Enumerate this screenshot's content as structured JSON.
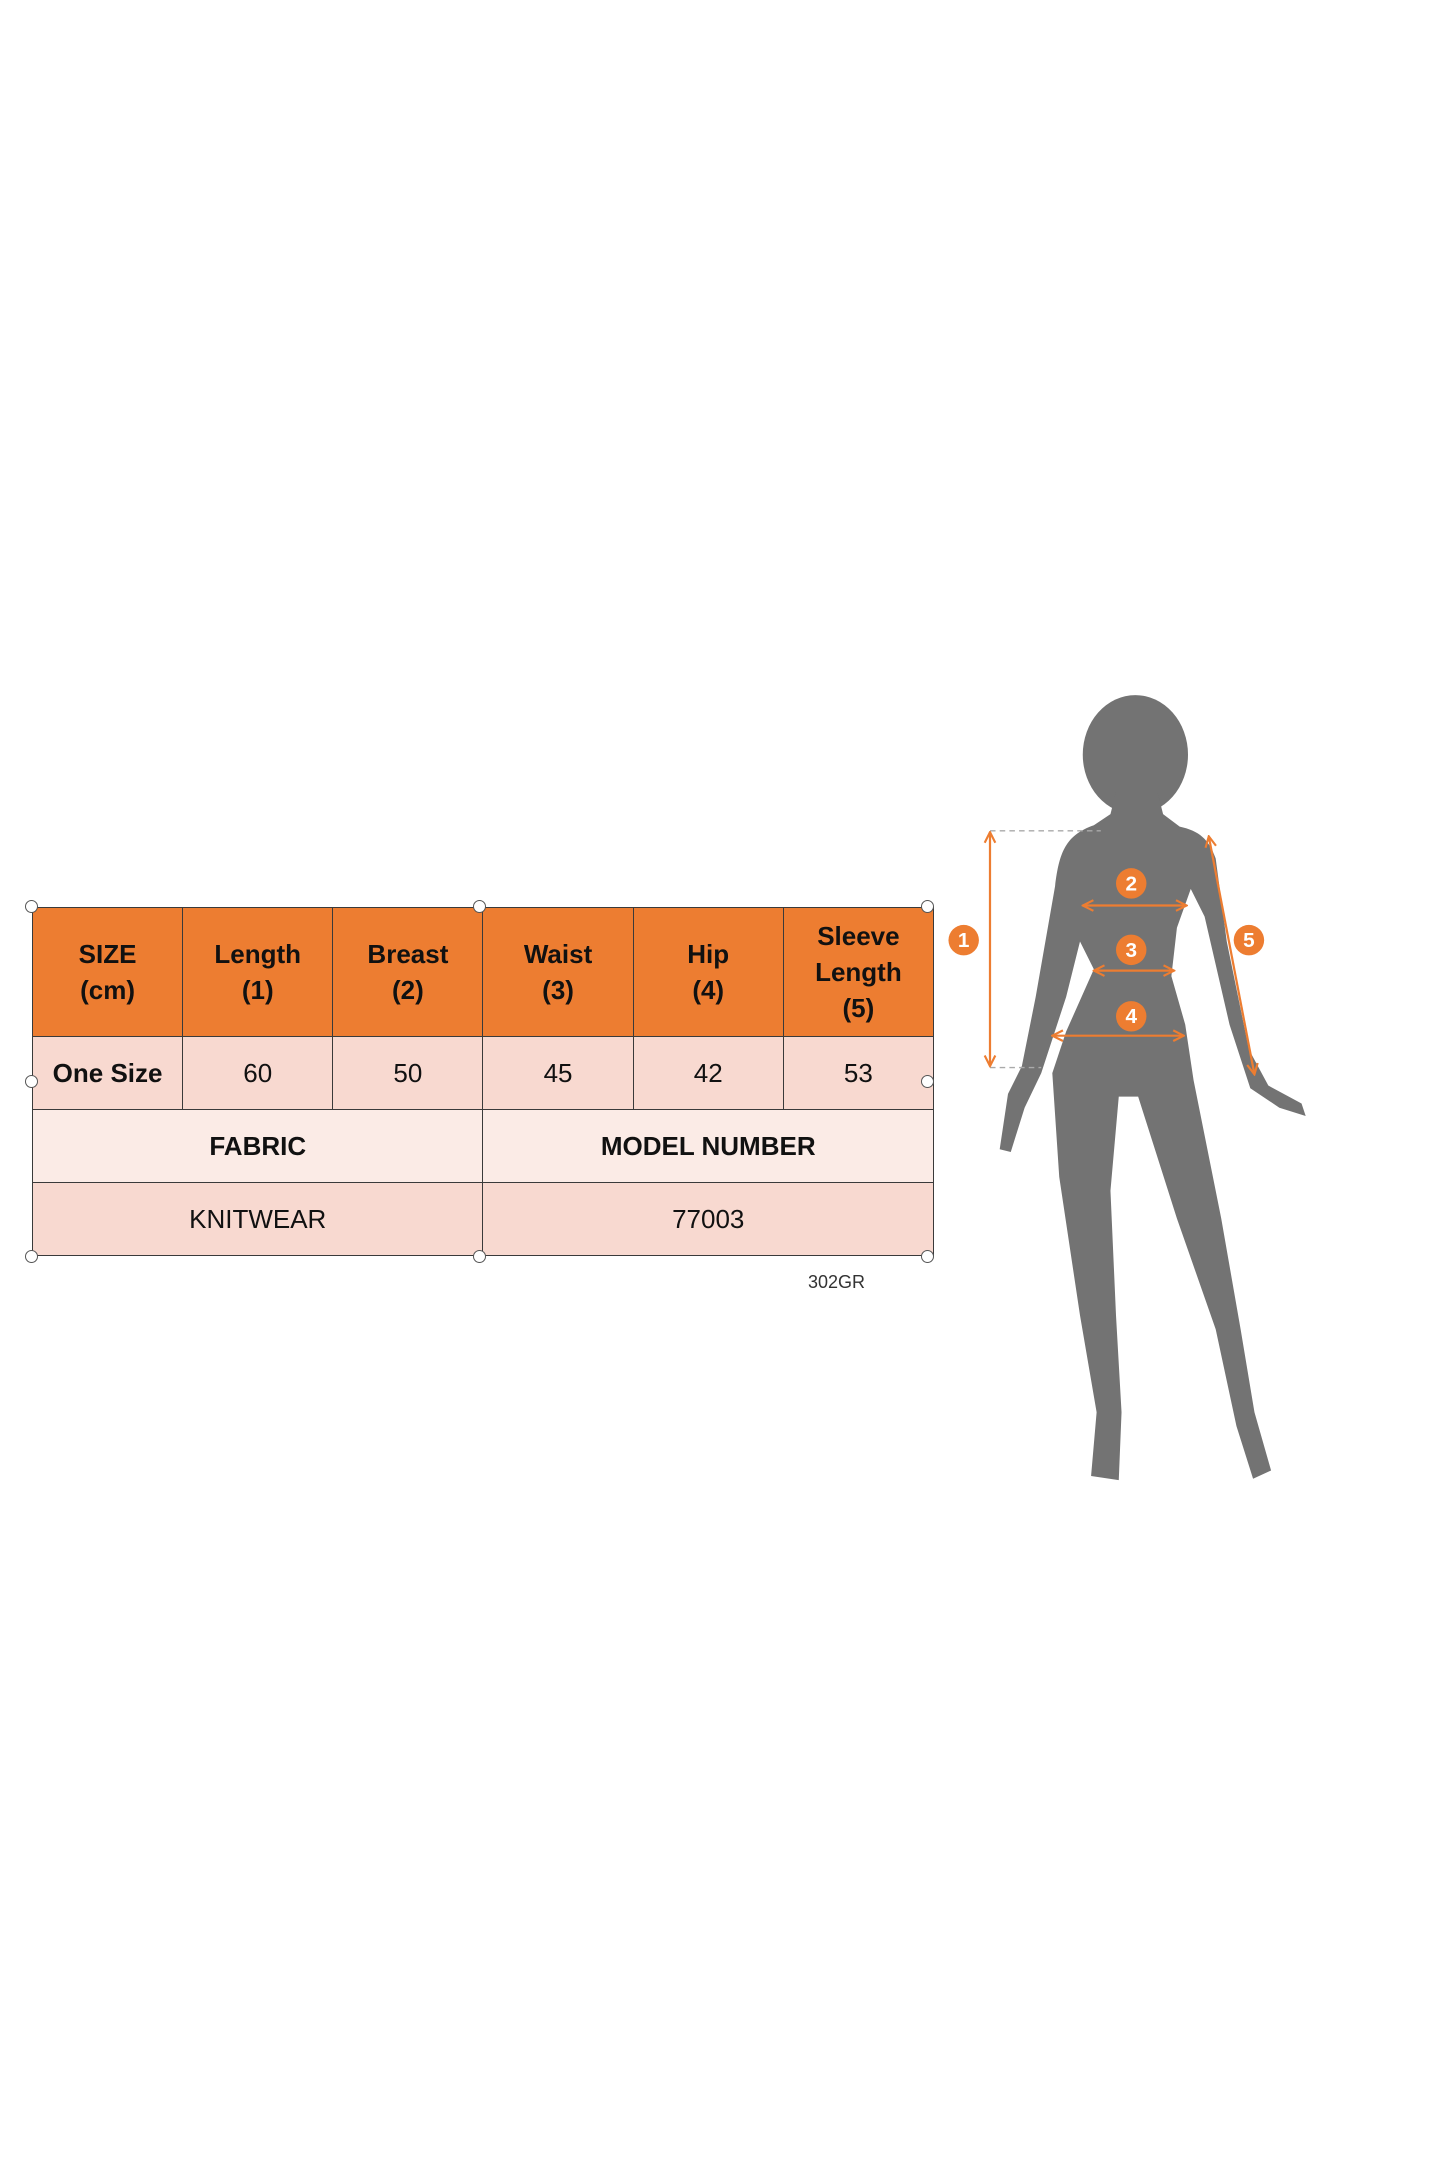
{
  "table": {
    "headers": [
      "SIZE\n(cm)",
      "Length\n(1)",
      "Breast\n(2)",
      "Waist\n(3)",
      "Hip\n(4)",
      "Sleeve\nLength\n(5)"
    ],
    "row": [
      "One Size",
      "60",
      "50",
      "45",
      "42",
      "53"
    ],
    "labels": [
      "FABRIC",
      "MODEL NUMBER"
    ],
    "info": [
      "KNITWEAR",
      "77003"
    ]
  },
  "code": "302GR",
  "figure": {
    "markers": [
      "1",
      "2",
      "3",
      "4",
      "5"
    ],
    "accent_color": "#ed7d31",
    "silhouette_color": "#737373"
  },
  "colors": {
    "header": "#ed7d31",
    "row": "#f8d9d0",
    "label_row": "#fbebe6"
  }
}
